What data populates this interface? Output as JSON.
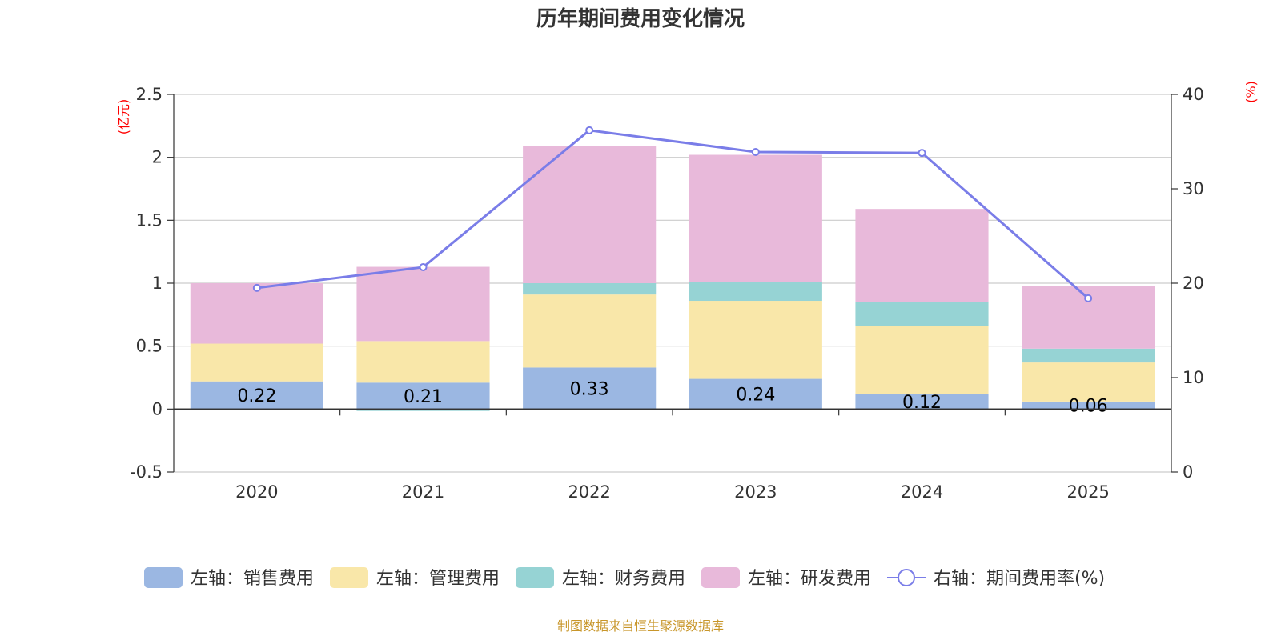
{
  "chart_data": {
    "type": "bar",
    "title": "历年期间费用变化情况",
    "categories": [
      "2020",
      "2021",
      "2022",
      "2023",
      "2024",
      "2025"
    ],
    "left_axis": {
      "unit": "(亿元)",
      "ylim": [
        -0.5,
        2.5
      ],
      "ticks": [
        -0.5,
        0,
        0.5,
        1,
        1.5,
        2,
        2.5
      ],
      "tick_labels": [
        "-0.5",
        "0",
        "0.5",
        "1",
        "1.5",
        "2",
        "2.5"
      ]
    },
    "right_axis": {
      "unit": "(%)",
      "ylim": [
        0,
        40
      ],
      "ticks": [
        0,
        10,
        20,
        30,
        40
      ],
      "tick_labels": [
        "0",
        "10",
        "20",
        "30",
        "40"
      ]
    },
    "series": [
      {
        "name": "左轴：销售费用",
        "type": "bar",
        "color": "#9bb7e2",
        "values": [
          0.22,
          0.21,
          0.33,
          0.24,
          0.12,
          0.06
        ],
        "labels": [
          "0.22",
          "0.21",
          "0.33",
          "0.24",
          "0.12",
          "0.06"
        ]
      },
      {
        "name": "左轴：管理费用",
        "type": "bar",
        "color": "#f9e7a9",
        "values": [
          0.3,
          0.33,
          0.58,
          0.62,
          0.54,
          0.31
        ]
      },
      {
        "name": "左轴：财务费用",
        "type": "bar",
        "color": "#96d3d4",
        "values": [
          0.0,
          -0.015,
          0.09,
          0.15,
          0.19,
          0.11
        ]
      },
      {
        "name": "左轴：研发费用",
        "type": "bar",
        "color": "#e8b9da",
        "values": [
          0.48,
          0.59,
          1.09,
          1.01,
          0.74,
          0.5
        ]
      },
      {
        "name": "右轴：期间费用率(%)",
        "type": "line",
        "color": "#7a7de8",
        "axis": "right",
        "values": [
          19.5,
          21.7,
          36.2,
          33.9,
          33.8,
          18.4
        ]
      }
    ],
    "grid": true,
    "legend": "bottom"
  },
  "footer": {
    "source": "制图数据来自恒生聚源数据库"
  }
}
